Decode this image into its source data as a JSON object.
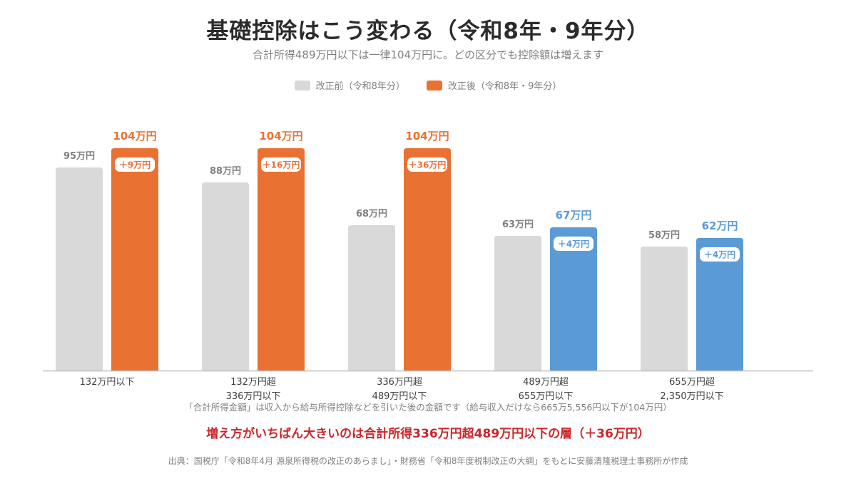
{
  "header": {
    "title": "基礎控除はこう変わる（令和8年・9年分）",
    "subtitle": "合計所得489万円以下は一律104万円に。どの区分でも控除額は増えます"
  },
  "legend": {
    "before_label": "改正前（令和8年分）",
    "after_label": "改正後（令和8年・9年分）"
  },
  "colors": {
    "before": "#d9d9d9",
    "after_orange": "#e97132",
    "after_blue": "#5b9bd5",
    "highlight": "#c9262a"
  },
  "chart_data": {
    "type": "bar",
    "unit": "万円",
    "ylim": [
      0,
      104
    ],
    "categories": [
      [
        "132万円以下"
      ],
      [
        "132万円超",
        "336万円以下"
      ],
      [
        "336万円超",
        "489万円以下"
      ],
      [
        "489万円超",
        "655万円以下"
      ],
      [
        "655万円超",
        "2,350万円以下"
      ]
    ],
    "series": [
      {
        "name": "改正前（令和8年分）",
        "values": [
          95,
          88,
          68,
          63,
          58
        ],
        "labels": [
          "95万円",
          "88万円",
          "68万円",
          "63万円",
          "58万円"
        ]
      },
      {
        "name": "改正後（令和8年・9年分）",
        "values": [
          104,
          104,
          104,
          67,
          62
        ],
        "labels": [
          "104万円",
          "104万円",
          "104万円",
          "67万円",
          "62万円"
        ],
        "colors": [
          "#e97132",
          "#e97132",
          "#e97132",
          "#5b9bd5",
          "#5b9bd5"
        ]
      }
    ],
    "increase_labels": [
      "＋9万円",
      "＋16万円",
      "＋36万円",
      "＋4万円",
      "＋4万円"
    ]
  },
  "footer": {
    "note": "「合計所得金額」は収入から給与所得控除などを引いた後の金額です（給与収入だけなら665万5,556円以下が104万円）",
    "highlight": "増え方がいちばん大きいのは合計所得336万円超489万円以下の層（＋36万円）",
    "source": "出典：国税庁「令和8年4月 源泉所得税の改正のあらまし」・財務省「令和8年度税制改正の大綱」をもとに安藤清隆税理士事務所が作成"
  }
}
